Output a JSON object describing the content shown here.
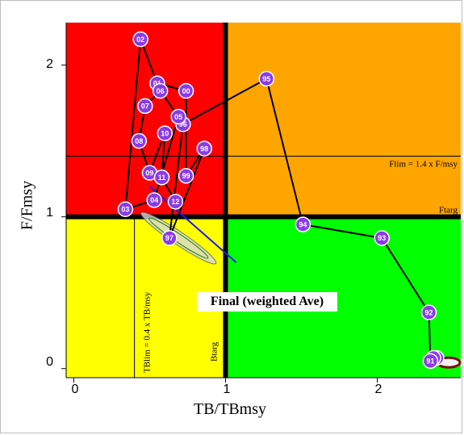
{
  "chart_data": {
    "type": "scatter",
    "xlabel": "TB/TBmsy",
    "ylabel": "F/Fmsy",
    "xlim": [
      -0.05,
      2.55
    ],
    "ylim": [
      -0.06,
      2.28
    ],
    "x_ticks": [
      "0",
      "1",
      "2"
    ],
    "y_ticks": [
      "0",
      "1",
      "2"
    ],
    "zones": [
      {
        "name": "overfishing-overfished",
        "color": "#ff0000"
      },
      {
        "name": "overfishing",
        "color": "#ffa500"
      },
      {
        "name": "overfished",
        "color": "#ffff00"
      },
      {
        "name": "healthy",
        "color": "#00ff00"
      }
    ],
    "reference_lines": {
      "flim_label": "Flim = 1.4 x F/msy",
      "flim_value": 1.4,
      "ftarg_label": "Ftarg",
      "ftarg_value": 1.0,
      "tblim_label": "TBlim = 0.4 x TB/msy",
      "tblim_value": 0.4,
      "btarg_label": "Btarg",
      "btarg_value": 1.0
    },
    "annotation": "Final (weighted Ave)",
    "series": [
      {
        "points": [
          {
            "year": "89",
            "x": 2.39,
            "y": 0.07
          },
          {
            "year": "90",
            "x": 2.37,
            "y": 0.07
          },
          {
            "year": "91",
            "x": 2.35,
            "y": 0.05
          },
          {
            "year": "92",
            "x": 2.34,
            "y": 0.37
          },
          {
            "year": "93",
            "x": 2.03,
            "y": 0.86
          },
          {
            "year": "94",
            "x": 1.51,
            "y": 0.95
          },
          {
            "year": "95",
            "x": 1.27,
            "y": 1.91
          },
          {
            "year": "96",
            "x": 0.72,
            "y": 1.61
          },
          {
            "year": "97",
            "x": 0.63,
            "y": 0.86
          },
          {
            "year": "98",
            "x": 0.86,
            "y": 1.45
          },
          {
            "year": "99",
            "x": 0.74,
            "y": 1.27
          },
          {
            "year": "00",
            "x": 0.74,
            "y": 1.83
          },
          {
            "year": "01",
            "x": 0.55,
            "y": 1.88
          },
          {
            "year": "02",
            "x": 0.44,
            "y": 2.17
          },
          {
            "year": "03",
            "x": 0.34,
            "y": 1.05
          },
          {
            "year": "04",
            "x": 0.53,
            "y": 1.11
          },
          {
            "year": "05",
            "x": 0.69,
            "y": 1.66
          },
          {
            "year": "06",
            "x": 0.57,
            "y": 1.83
          },
          {
            "year": "07",
            "x": 0.47,
            "y": 1.73
          },
          {
            "year": "08",
            "x": 0.43,
            "y": 1.5
          },
          {
            "year": "09",
            "x": 0.5,
            "y": 1.29
          },
          {
            "year": "10",
            "x": 0.6,
            "y": 1.55
          },
          {
            "year": "11",
            "x": 0.58,
            "y": 1.26
          },
          {
            "year": "12",
            "x": 0.67,
            "y": 1.1
          }
        ]
      }
    ]
  }
}
